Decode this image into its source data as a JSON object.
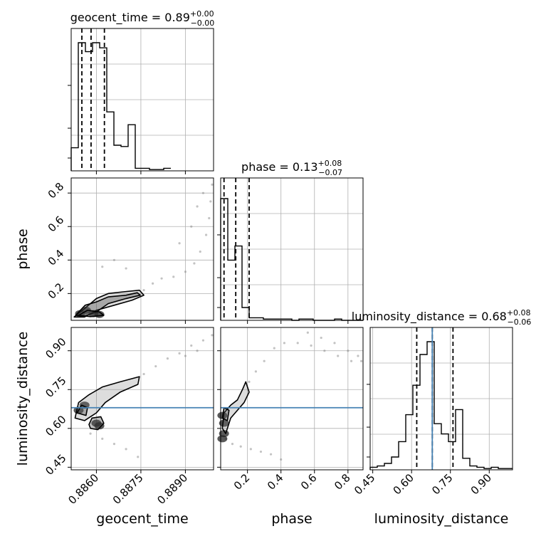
{
  "chart_data": {
    "type": "corner",
    "parameters": [
      "geocent_time",
      "phase",
      "luminosity_distance"
    ],
    "axis_labels": {
      "geocent_time": "geocent_time",
      "phase": "phase",
      "luminosity_distance": "luminosity_distance"
    },
    "titles": [
      {
        "param": "geocent_time",
        "name": "geocent_time",
        "median": "0.89",
        "plus": "+0.00",
        "minus": "−0.00"
      },
      {
        "param": "phase",
        "name": "phase",
        "median": "0.13",
        "plus": "+0.08",
        "minus": "−0.07"
      },
      {
        "param": "luminosity_distance",
        "name": "luminosity_distance",
        "median": "0.68",
        "plus": "+0.08",
        "minus": "−0.06"
      }
    ],
    "ranges": {
      "geocent_time": [
        0.88515,
        0.88995
      ],
      "phase": [
        0.04,
        0.89
      ],
      "luminosity_distance": [
        0.44,
        0.99
      ]
    },
    "ticks": {
      "geocent_time": {
        "values": [
          0.886,
          0.8875,
          0.889
        ],
        "labels": [
          "0.8860",
          "0.8875",
          "0.8890"
        ]
      },
      "phase": {
        "values": [
          0.2,
          0.4,
          0.6,
          0.8
        ],
        "labels": [
          "0.2",
          "0.4",
          "0.6",
          "0.8"
        ]
      },
      "luminosity_distance": {
        "values": [
          0.45,
          0.6,
          0.75,
          0.9
        ],
        "labels": [
          "0.45",
          "0.60",
          "0.75",
          "0.90"
        ]
      }
    },
    "truths": {
      "luminosity_distance": 0.68
    },
    "truth_color": "#4682b4",
    "quantiles": {
      "geocent_time": [
        0.88551,
        0.88582,
        0.88627
      ],
      "phase": [
        0.06,
        0.13,
        0.21
      ],
      "luminosity_distance": [
        0.62,
        0.68,
        0.76
      ]
    },
    "histograms": {
      "geocent_time": {
        "edges_start": 0.88515,
        "bin_width": 0.00024,
        "counts": [
          0.18,
          1.0,
          0.93,
          1.0,
          0.96,
          0.46,
          0.2,
          0.19,
          0.36,
          0.02,
          0.02,
          0.01,
          0.01,
          0.02
        ]
      },
      "phase": {
        "edges_start": 0.04,
        "bin_width": 0.0425,
        "counts": [
          0.95,
          0.47,
          0.58,
          0.1,
          0.02,
          0.02,
          0.01,
          0.01,
          0.01,
          0.01,
          0.0,
          0.01,
          0.01,
          0.0,
          0.0,
          0.0,
          0.01,
          0.0,
          0.0,
          0.0
        ]
      },
      "luminosity_distance": {
        "edges_start": 0.44,
        "bin_width": 0.0275,
        "counts": [
          0.02,
          0.03,
          0.05,
          0.1,
          0.22,
          0.43,
          0.66,
          0.9,
          1.0,
          0.36,
          0.28,
          0.22,
          0.47,
          0.09,
          0.03,
          0.02,
          0.01,
          0.02,
          0.01,
          0.01
        ]
      }
    },
    "pair_panels": [
      {
        "x": "geocent_time",
        "y": "phase",
        "contours": [
          [
            [
              0.88525,
              0.06
            ],
            [
              0.8856,
              0.11
            ],
            [
              0.886,
              0.17
            ],
            [
              0.8864,
              0.2
            ],
            [
              0.8869,
              0.21
            ],
            [
              0.88745,
              0.22
            ],
            [
              0.8876,
              0.19
            ],
            [
              0.8872,
              0.16
            ],
            [
              0.8866,
              0.13
            ],
            [
              0.886,
              0.1
            ],
            [
              0.8856,
              0.06
            ]
          ],
          [
            [
              0.8853,
              0.07
            ],
            [
              0.88562,
              0.13
            ],
            [
              0.886,
              0.15
            ],
            [
              0.8864,
              0.18
            ],
            [
              0.887,
              0.19
            ],
            [
              0.88738,
              0.205
            ],
            [
              0.88748,
              0.19
            ],
            [
              0.887,
              0.17
            ],
            [
              0.8864,
              0.14
            ],
            [
              0.886,
              0.09
            ],
            [
              0.8856,
              0.065
            ]
          ],
          [
            [
              0.8854,
              0.07
            ],
            [
              0.8857,
              0.1
            ],
            [
              0.8861,
              0.09
            ],
            [
              0.88625,
              0.07
            ],
            [
              0.8858,
              0.062
            ]
          ]
        ],
        "density_core": [
          [
            0.88545,
            0.08
          ],
          [
            0.88565,
            0.1
          ],
          [
            0.8859,
            0.08
          ],
          [
            0.8861,
            0.075
          ]
        ],
        "tail": [
          [
            0.8876,
            0.22
          ],
          [
            0.8879,
            0.26
          ],
          [
            0.8882,
            0.29
          ],
          [
            0.8886,
            0.3
          ],
          [
            0.889,
            0.33
          ],
          [
            0.8893,
            0.38
          ],
          [
            0.8895,
            0.45
          ],
          [
            0.8897,
            0.55
          ],
          [
            0.8898,
            0.65
          ],
          [
            0.88985,
            0.75
          ],
          [
            0.8899,
            0.85
          ],
          [
            0.887,
            0.35
          ],
          [
            0.8866,
            0.4
          ],
          [
            0.8862,
            0.36
          ],
          [
            0.8888,
            0.5
          ],
          [
            0.8892,
            0.6
          ],
          [
            0.8894,
            0.72
          ],
          [
            0.8896,
            0.8
          ]
        ]
      },
      {
        "x": "geocent_time",
        "y": "luminosity_distance",
        "contours": [
          [
            [
              0.88528,
              0.64
            ],
            [
              0.8854,
              0.7
            ],
            [
              0.88575,
              0.73
            ],
            [
              0.8862,
              0.76
            ],
            [
              0.8868,
              0.78
            ],
            [
              0.88745,
              0.8
            ],
            [
              0.8874,
              0.77
            ],
            [
              0.8868,
              0.74
            ],
            [
              0.8863,
              0.7
            ],
            [
              0.886,
              0.66
            ],
            [
              0.8856,
              0.63
            ]
          ],
          [
            [
              0.88575,
              0.615
            ],
            [
              0.88585,
              0.64
            ],
            [
              0.88615,
              0.645
            ],
            [
              0.88625,
              0.62
            ],
            [
              0.88605,
              0.595
            ],
            [
              0.8858,
              0.6
            ]
          ],
          [
            [
              0.88535,
              0.66
            ],
            [
              0.8855,
              0.69
            ],
            [
              0.8857,
              0.68
            ],
            [
              0.88565,
              0.65
            ]
          ]
        ],
        "density_core": [
          [
            0.8854,
            0.67
          ],
          [
            0.8856,
            0.69
          ],
          [
            0.886,
            0.62
          ],
          [
            0.8861,
            0.61
          ]
        ],
        "tail": [
          [
            0.8858,
            0.58
          ],
          [
            0.8862,
            0.56
          ],
          [
            0.8866,
            0.54
          ],
          [
            0.887,
            0.52
          ],
          [
            0.8874,
            0.49
          ],
          [
            0.8876,
            0.81
          ],
          [
            0.888,
            0.84
          ],
          [
            0.8884,
            0.87
          ],
          [
            0.8888,
            0.89
          ],
          [
            0.8892,
            0.92
          ],
          [
            0.8896,
            0.94
          ],
          [
            0.8899,
            0.96
          ],
          [
            0.8894,
            0.9
          ],
          [
            0.889,
            0.88
          ]
        ]
      },
      {
        "x": "phase",
        "y": "luminosity_distance",
        "contours": [
          [
            [
              0.05,
              0.6
            ],
            [
              0.06,
              0.66
            ],
            [
              0.1,
              0.69
            ],
            [
              0.14,
              0.71
            ],
            [
              0.17,
              0.75
            ],
            [
              0.19,
              0.78
            ],
            [
              0.21,
              0.74
            ],
            [
              0.18,
              0.7
            ],
            [
              0.14,
              0.67
            ],
            [
              0.1,
              0.64
            ],
            [
              0.07,
              0.58
            ]
          ],
          [
            [
              0.05,
              0.64
            ],
            [
              0.06,
              0.68
            ],
            [
              0.09,
              0.67
            ],
            [
              0.08,
              0.63
            ]
          ]
        ],
        "density_core": [
          [
            0.05,
            0.65
          ],
          [
            0.06,
            0.62
          ],
          [
            0.06,
            0.58
          ],
          [
            0.05,
            0.56
          ]
        ],
        "tail": [
          [
            0.07,
            0.56
          ],
          [
            0.11,
            0.54
          ],
          [
            0.16,
            0.53
          ],
          [
            0.22,
            0.52
          ],
          [
            0.28,
            0.51
          ],
          [
            0.34,
            0.5
          ],
          [
            0.4,
            0.48
          ],
          [
            0.21,
            0.78
          ],
          [
            0.25,
            0.82
          ],
          [
            0.3,
            0.86
          ],
          [
            0.36,
            0.91
          ],
          [
            0.42,
            0.93
          ],
          [
            0.5,
            0.93
          ],
          [
            0.58,
            0.92
          ],
          [
            0.66,
            0.9
          ],
          [
            0.74,
            0.88
          ],
          [
            0.82,
            0.86
          ],
          [
            0.88,
            0.86
          ],
          [
            0.86,
            0.88
          ],
          [
            0.8,
            0.9
          ],
          [
            0.72,
            0.93
          ],
          [
            0.64,
            0.95
          ],
          [
            0.56,
            0.97
          ]
        ]
      }
    ]
  }
}
